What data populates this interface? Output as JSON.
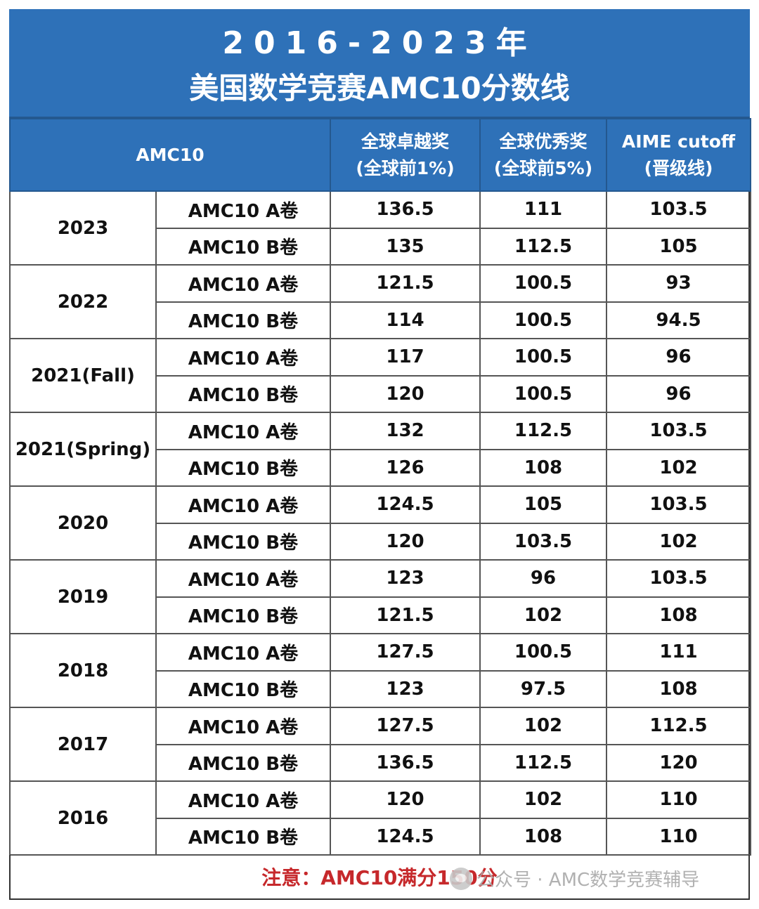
{
  "title": {
    "line1": "2016-2023年",
    "line2": "美国数学竞赛AMC10分数线"
  },
  "headers": {
    "col1": "AMC10",
    "col2_line1": "全球卓越奖",
    "col2_line2": "(全球前1%)",
    "col3_line1": "全球优秀奖",
    "col3_line2": "(全球前5%)",
    "col4_line1": "AIME cutoff",
    "col4_line2": "(晋级线)"
  },
  "rows": [
    {
      "year": "2023",
      "papers": [
        {
          "paper": "AMC10 A卷",
          "distinction": "136.5",
          "honor": "111",
          "aime": "103.5"
        },
        {
          "paper": "AMC10 B卷",
          "distinction": "135",
          "honor": "112.5",
          "aime": "105"
        }
      ]
    },
    {
      "year": "2022",
      "papers": [
        {
          "paper": "AMC10 A卷",
          "distinction": "121.5",
          "honor": "100.5",
          "aime": "93"
        },
        {
          "paper": "AMC10 B卷",
          "distinction": "114",
          "honor": "100.5",
          "aime": "94.5"
        }
      ]
    },
    {
      "year": "2021(Fall)",
      "papers": [
        {
          "paper": "AMC10 A卷",
          "distinction": "117",
          "honor": "100.5",
          "aime": "96"
        },
        {
          "paper": "AMC10 B卷",
          "distinction": "120",
          "honor": "100.5",
          "aime": "96"
        }
      ]
    },
    {
      "year": "2021(Spring)",
      "papers": [
        {
          "paper": "AMC10 A卷",
          "distinction": "132",
          "honor": "112.5",
          "aime": "103.5"
        },
        {
          "paper": "AMC10 B卷",
          "distinction": "126",
          "honor": "108",
          "aime": "102"
        }
      ]
    },
    {
      "year": "2020",
      "papers": [
        {
          "paper": "AMC10 A卷",
          "distinction": "124.5",
          "honor": "105",
          "aime": "103.5"
        },
        {
          "paper": "AMC10 B卷",
          "distinction": "120",
          "honor": "103.5",
          "aime": "102"
        }
      ]
    },
    {
      "year": "2019",
      "papers": [
        {
          "paper": "AMC10 A卷",
          "distinction": "123",
          "honor": "96",
          "aime": "103.5"
        },
        {
          "paper": "AMC10 B卷",
          "distinction": "121.5",
          "honor": "102",
          "aime": "108"
        }
      ]
    },
    {
      "year": "2018",
      "papers": [
        {
          "paper": "AMC10 A卷",
          "distinction": "127.5",
          "honor": "100.5",
          "aime": "111"
        },
        {
          "paper": "AMC10 B卷",
          "distinction": "123",
          "honor": "97.5",
          "aime": "108"
        }
      ]
    },
    {
      "year": "2017",
      "papers": [
        {
          "paper": "AMC10 A卷",
          "distinction": "127.5",
          "honor": "102",
          "aime": "112.5"
        },
        {
          "paper": "AMC10 B卷",
          "distinction": "136.5",
          "honor": "112.5",
          "aime": "120"
        }
      ]
    },
    {
      "year": "2016",
      "papers": [
        {
          "paper": "AMC10 A卷",
          "distinction": "120",
          "honor": "102",
          "aime": "110"
        },
        {
          "paper": "AMC10 B卷",
          "distinction": "124.5",
          "honor": "108",
          "aime": "110"
        }
      ]
    }
  ],
  "note": "注意：AMC10满分150分",
  "watermark": "公众号 · AMC数学竞赛辅导",
  "colors": {
    "header_bg": "#2e71b8",
    "note_text": "#c6282b"
  }
}
